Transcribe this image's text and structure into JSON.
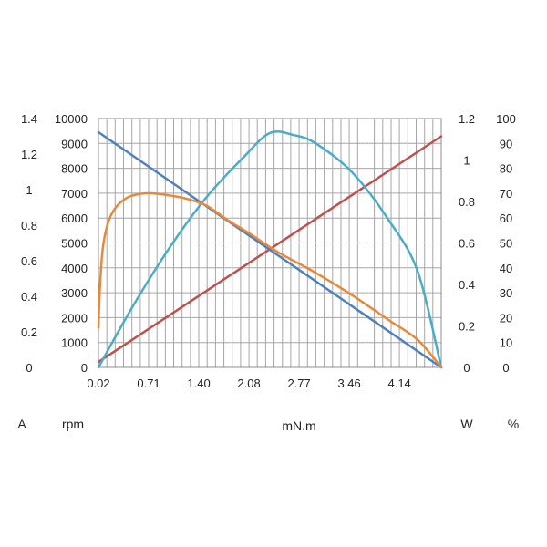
{
  "chart_data": {
    "type": "line",
    "title": "",
    "xlabel": "mN.m",
    "x_ticks": [
      "0.02",
      "0.71",
      "1.40",
      "2.08",
      "2.77",
      "3.46",
      "4.14"
    ],
    "xlim": [
      0.02,
      4.72
    ],
    "grid": true,
    "axes": {
      "current": {
        "unit": "A",
        "side": "left-outer",
        "ticks": [
          "0",
          "0.2",
          "0.4",
          "0.6",
          "0.8",
          "1",
          "1.2",
          "1.4"
        ],
        "range": [
          0,
          1.4
        ]
      },
      "speed": {
        "unit": "rpm",
        "side": "left-inner",
        "ticks": [
          "0",
          "1000",
          "2000",
          "3000",
          "4000",
          "5000",
          "6000",
          "7000",
          "8000",
          "9000",
          "10000"
        ],
        "range": [
          0,
          10000
        ]
      },
      "power": {
        "unit": "W",
        "side": "right-inner",
        "ticks": [
          "0",
          "0.2",
          "0.4",
          "0.6",
          "0.8",
          "1",
          "1.2"
        ],
        "range": [
          0,
          1.2
        ]
      },
      "efficiency": {
        "unit": "%",
        "side": "right-outer",
        "ticks": [
          "0",
          "10",
          "20",
          "30",
          "40",
          "50",
          "60",
          "70",
          "80",
          "90",
          "100"
        ],
        "range": [
          0,
          100
        ]
      }
    },
    "series": [
      {
        "axis": "current",
        "color": "#c0504d",
        "x": [
          0.02,
          4.72
        ],
        "y": [
          0.03,
          1.3
        ]
      },
      {
        "axis": "speed",
        "color": "#4f81bd",
        "x": [
          0.02,
          4.72
        ],
        "y": [
          9450,
          0
        ]
      },
      {
        "axis": "power",
        "color": "#4bacc6",
        "x": [
          0.02,
          0.5,
          1.0,
          1.5,
          2.0,
          2.37,
          2.7,
          3.0,
          3.5,
          4.0,
          4.4,
          4.72
        ],
        "y": [
          0.0,
          0.3,
          0.58,
          0.82,
          1.01,
          1.13,
          1.12,
          1.08,
          0.94,
          0.71,
          0.46,
          0.0
        ]
      },
      {
        "axis": "efficiency",
        "color": "#e8883a",
        "x": [
          0.02,
          0.04,
          0.08,
          0.15,
          0.25,
          0.4,
          0.55,
          0.71,
          0.9,
          1.2,
          1.5,
          1.8,
          2.08,
          2.5,
          3.0,
          3.5,
          4.0,
          4.4,
          4.72
        ],
        "y": [
          16,
          32,
          48,
          58,
          64,
          68,
          69.5,
          70,
          69.5,
          68,
          65,
          59,
          54,
          46,
          38,
          29,
          19,
          11,
          0
        ]
      }
    ]
  }
}
